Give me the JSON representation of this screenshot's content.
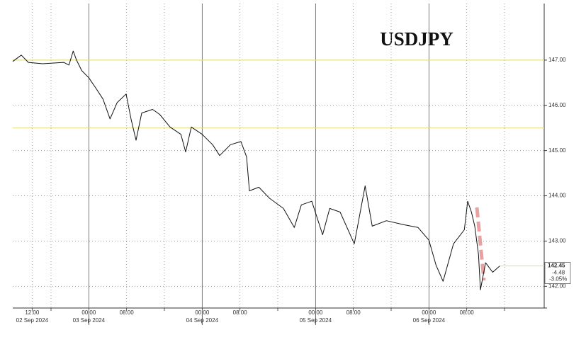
{
  "chart_data": {
    "type": "line",
    "title": "USDJPY",
    "x": [
      "2024-09-02T07:54",
      "2024-09-02T09:42",
      "2024-09-02T11:12",
      "2024-09-02T14:12",
      "2024-09-02T18:42",
      "2024-09-02T19:48",
      "2024-09-02T20:42",
      "2024-09-02T21:24",
      "2024-09-02T22:30",
      "2024-09-03T00:00",
      "2024-09-03T01:30",
      "2024-09-03T03:00",
      "2024-09-03T04:30",
      "2024-09-03T06:00",
      "2024-09-03T07:54",
      "2024-09-03T09:00",
      "2024-09-03T10:00",
      "2024-09-03T11:12",
      "2024-09-03T13:30",
      "2024-09-03T15:00",
      "2024-09-03T17:12",
      "2024-09-03T19:30",
      "2024-09-03T20:30",
      "2024-09-03T21:42",
      "2024-09-04T00:00",
      "2024-09-04T02:12",
      "2024-09-04T03:42",
      "2024-09-04T06:00",
      "2024-09-04T08:12",
      "2024-09-04T09:24",
      "2024-09-04T10:00",
      "2024-09-04T12:00",
      "2024-09-04T14:12",
      "2024-09-04T17:12",
      "2024-09-04T19:30",
      "2024-09-04T21:00",
      "2024-09-04T23:12",
      "2024-09-05T01:30",
      "2024-09-05T03:00",
      "2024-09-05T05:12",
      "2024-09-05T08:12",
      "2024-09-05T10:30",
      "2024-09-05T12:00",
      "2024-09-05T15:00",
      "2024-09-05T18:42",
      "2024-09-05T21:42",
      "2024-09-06T00:00",
      "2024-09-06T01:30",
      "2024-09-06T03:00",
      "2024-09-06T05:12",
      "2024-09-06T07:30",
      "2024-09-06T08:12",
      "2024-09-06T09:00",
      "2024-09-06T09:42",
      "2024-09-06T10:30",
      "2024-09-06T10:54",
      "2024-09-06T12:00",
      "2024-09-06T13:30",
      "2024-09-06T15:00"
    ],
    "series": [
      {
        "name": "USDJPY",
        "color": "#111111",
        "values": [
          146.97,
          147.11,
          146.95,
          146.92,
          146.95,
          146.89,
          147.2,
          147.0,
          146.77,
          146.61,
          146.38,
          146.14,
          145.7,
          146.06,
          146.25,
          145.67,
          145.23,
          145.83,
          145.91,
          145.8,
          145.52,
          145.36,
          144.97,
          145.52,
          145.36,
          145.13,
          144.89,
          145.13,
          145.2,
          144.86,
          144.11,
          144.19,
          143.95,
          143.72,
          143.3,
          143.8,
          143.88,
          143.14,
          143.72,
          143.64,
          142.94,
          144.22,
          143.33,
          143.45,
          143.36,
          143.3,
          143.02,
          142.47,
          142.11,
          142.94,
          143.25,
          143.88,
          143.64,
          143.33,
          142.7,
          141.92,
          142.52,
          142.31,
          142.45
        ]
      }
    ],
    "xlim": [
      "2024-09-02T07:54",
      "2024-09-07T00:24"
    ],
    "xticks": [
      {
        "value": "2024-09-02T12:00",
        "label": "12:00"
      },
      {
        "value": "2024-09-02T16:00",
        "label": null
      },
      {
        "value": "2024-09-03T00:00",
        "label": "00:00"
      },
      {
        "value": "2024-09-03T08:00",
        "label": "08:00"
      },
      {
        "value": "2024-09-03T16:00",
        "label": null
      },
      {
        "value": "2024-09-04T00:00",
        "label": "00:00"
      },
      {
        "value": "2024-09-04T08:00",
        "label": "08:00"
      },
      {
        "value": "2024-09-04T16:00",
        "label": null
      },
      {
        "value": "2024-09-05T00:00",
        "label": "00:00"
      },
      {
        "value": "2024-09-05T08:00",
        "label": "08:00"
      },
      {
        "value": "2024-09-05T16:00",
        "label": null
      },
      {
        "value": "2024-09-06T00:00",
        "label": "00:00"
      },
      {
        "value": "2024-09-06T08:00",
        "label": "08:00"
      },
      {
        "value": "2024-09-06T16:00",
        "label": null
      }
    ],
    "date_labels": [
      {
        "value": "2024-09-02T12:00",
        "label": "02 Sep 2024"
      },
      {
        "value": "2024-09-03T00:00",
        "label": "03 Sep 2024"
      },
      {
        "value": "2024-09-04T00:00",
        "label": "04 Sep 2024"
      },
      {
        "value": "2024-09-05T00:00",
        "label": "05 Sep 2024"
      },
      {
        "value": "2024-09-06T00:00",
        "label": "06 Sep 2024"
      }
    ],
    "ylim": [
      141.52,
      148.25
    ],
    "yticks": [
      {
        "value": 142,
        "label": "142.00"
      },
      {
        "value": 143,
        "label": "143.00"
      },
      {
        "value": 144,
        "label": "144.00"
      },
      {
        "value": 145,
        "label": "145.00"
      },
      {
        "value": 146,
        "label": "146.00"
      },
      {
        "value": 147,
        "label": "147.00"
      }
    ],
    "reference_lines": [
      147,
      145.5
    ],
    "reference_color": "#e6e08a",
    "last_value": 142.45,
    "change": -4.48,
    "change_pct": {
      "value": -3.05,
      "label": "-3.05%"
    },
    "grid": true
  }
}
